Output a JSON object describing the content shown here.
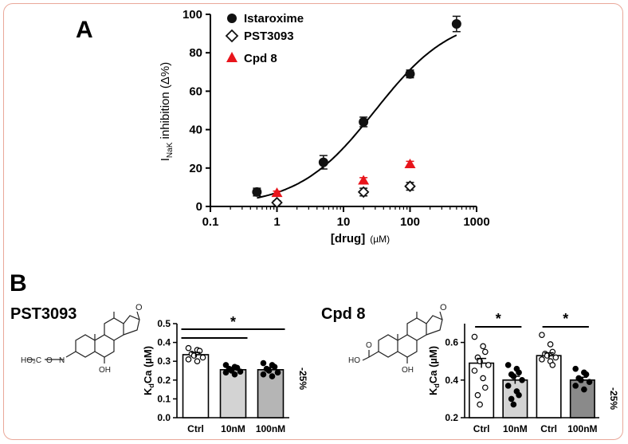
{
  "panel_a_letter": "A",
  "panel_b_letter": "B",
  "chart_data": [
    {
      "type": "scatter",
      "panel": "A",
      "xscale": "log",
      "xlim": [
        0.1,
        1000
      ],
      "ylim": [
        0,
        100
      ],
      "xticks": [
        "0.1",
        "1",
        "10",
        "100",
        "1000"
      ],
      "yticks": [
        "0",
        "20",
        "40",
        "60",
        "80",
        "100"
      ],
      "xlabel": "[drug]",
      "xlabel_unit": "(µM)",
      "ylabel_prefix": "I",
      "ylabel_sub": "NaK",
      "ylabel_suffix": " inhibition (Δ%)",
      "series": [
        {
          "name": "Istaroxime",
          "marker": "filled-circle",
          "color": "#111111",
          "points": [
            {
              "x": 0.5,
              "y": 7.5,
              "err": 2
            },
            {
              "x": 5,
              "y": 23,
              "err": 3.5
            },
            {
              "x": 20,
              "y": 44,
              "err": 2.5
            },
            {
              "x": 100,
              "y": 69,
              "err": 2
            },
            {
              "x": 500,
              "y": 95,
              "err": 4
            }
          ]
        },
        {
          "name": "PST3093",
          "marker": "open-diamond",
          "color": "#111111",
          "points": [
            {
              "x": 1,
              "y": 2,
              "err": 1
            },
            {
              "x": 20,
              "y": 7.5,
              "err": 2
            },
            {
              "x": 100,
              "y": 10.5,
              "err": 2
            }
          ]
        },
        {
          "name": "Cpd 8",
          "marker": "filled-triangle",
          "color": "#e8141b",
          "points": [
            {
              "x": 1,
              "y": 7,
              "err": 1
            },
            {
              "x": 20,
              "y": 13.5,
              "err": 1.5
            },
            {
              "x": 100,
              "y": 22,
              "err": 1.5
            }
          ]
        }
      ],
      "fit": {
        "name": "Istaroxime fit",
        "ic50": 30,
        "hill": 0.75,
        "min": 0,
        "max": 100,
        "x_range": [
          0.5,
          500
        ]
      }
    },
    {
      "type": "bar",
      "panel": "B-left",
      "compound": "PST3093",
      "categories": [
        "Ctrl",
        "10nM",
        "100nM"
      ],
      "values": [
        0.335,
        0.255,
        0.255
      ],
      "errors": [
        0.012,
        0.012,
        0.012
      ],
      "bar_colors": [
        "#ffffff",
        "#d3d3d3",
        "#b5b5b5"
      ],
      "ylim": [
        0,
        0.5
      ],
      "yticks": [
        "0.0",
        "0.1",
        "0.2",
        "0.3",
        "0.4",
        "0.5"
      ],
      "ylabel_prefix": "K",
      "ylabel_sub": "d",
      "ylabel_suffix": "Ca (µM)",
      "significance": "*",
      "change_label": "-25%",
      "points": [
        [
          0.37,
          0.36,
          0.355,
          0.34,
          0.33,
          0.32,
          0.31,
          0.3
        ],
        [
          0.28,
          0.27,
          0.265,
          0.26,
          0.25,
          0.245,
          0.24,
          0.23
        ],
        [
          0.29,
          0.28,
          0.27,
          0.26,
          0.25,
          0.24,
          0.23,
          0.22
        ]
      ]
    },
    {
      "type": "bar",
      "panel": "B-right",
      "compound": "Cpd 8",
      "categories": [
        "Ctrl",
        "10nM",
        "Ctrl",
        "100nM"
      ],
      "values": [
        0.49,
        0.4,
        0.53,
        0.4
      ],
      "errors": [
        0.025,
        0.02,
        0.015,
        0.015
      ],
      "bar_colors": [
        "#ffffff",
        "#d3d3d3",
        "#ffffff",
        "#8a8a8a"
      ],
      "ylim": [
        0.2,
        0.7
      ],
      "yticks": [
        "0.2",
        "0.4",
        "0.6"
      ],
      "ylabel_prefix": "K",
      "ylabel_sub": "d",
      "ylabel_suffix": "Ca (µM)",
      "significance": [
        "*",
        "*"
      ],
      "change_label": "-25%",
      "points": [
        [
          0.63,
          0.58,
          0.55,
          0.52,
          0.5,
          0.48,
          0.45,
          0.41,
          0.36,
          0.32,
          0.27
        ],
        [
          0.48,
          0.46,
          0.44,
          0.43,
          0.42,
          0.4,
          0.37,
          0.34,
          0.32,
          0.3,
          0.27
        ],
        [
          0.64,
          0.59,
          0.55,
          0.54,
          0.53,
          0.52,
          0.51,
          0.5,
          0.48
        ],
        [
          0.46,
          0.44,
          0.43,
          0.41,
          0.4,
          0.39,
          0.37,
          0.35
        ]
      ]
    }
  ],
  "structures": {
    "pst3093": {
      "compound_name": "PST3093",
      "groups": [
        "HO₂C",
        "O",
        "N",
        "OH",
        "O"
      ]
    },
    "cpd8": {
      "compound_name": "Cpd 8",
      "groups": [
        "HO",
        "OH",
        "O",
        "O"
      ]
    }
  }
}
